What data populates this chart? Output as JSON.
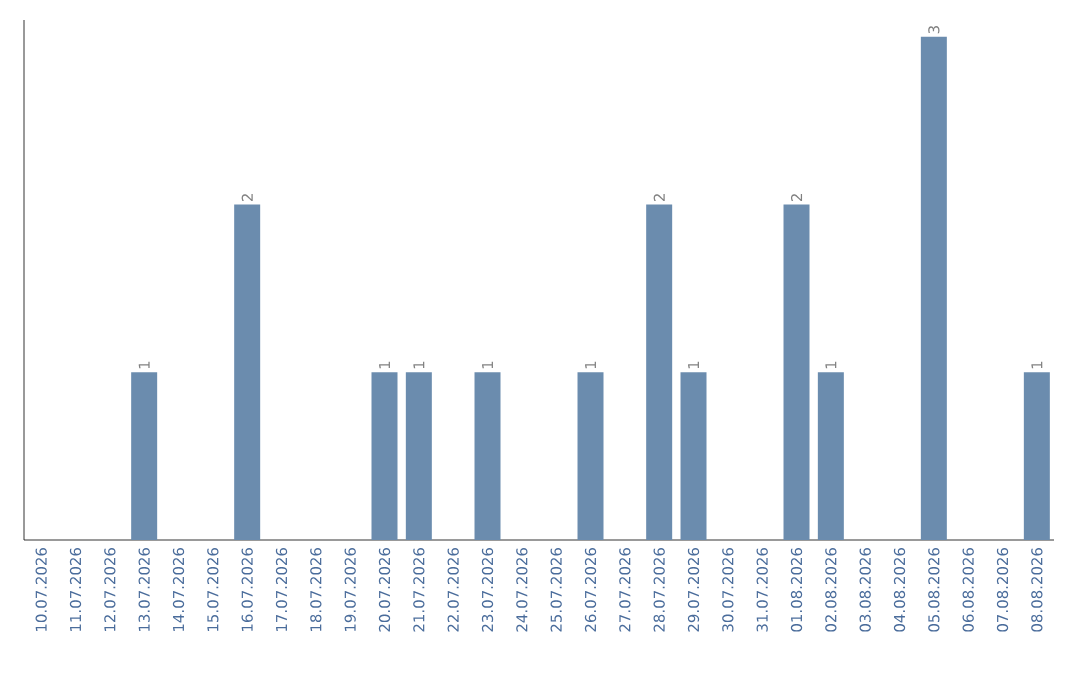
{
  "chart_data": {
    "type": "bar",
    "categories": [
      "10.07.2026",
      "11.07.2026",
      "12.07.2026",
      "13.07.2026",
      "14.07.2026",
      "15.07.2026",
      "16.07.2026",
      "17.07.2026",
      "18.07.2026",
      "19.07.2026",
      "20.07.2026",
      "21.07.2026",
      "22.07.2026",
      "23.07.2026",
      "24.07.2026",
      "25.07.2026",
      "26.07.2026",
      "27.07.2026",
      "28.07.2026",
      "29.07.2026",
      "30.07.2026",
      "31.07.2026",
      "01.08.2026",
      "02.08.2026",
      "03.08.2026",
      "04.08.2026",
      "05.08.2026",
      "06.08.2026",
      "07.08.2026",
      "08.08.2026"
    ],
    "values": [
      0,
      0,
      0,
      1,
      0,
      0,
      2,
      0,
      0,
      0,
      1,
      1,
      0,
      1,
      0,
      0,
      1,
      0,
      2,
      1,
      0,
      0,
      2,
      1,
      0,
      0,
      3,
      0,
      0,
      1
    ],
    "value_labels": [
      null,
      null,
      null,
      "1",
      null,
      null,
      "2",
      null,
      null,
      null,
      "1",
      "1",
      null,
      "1",
      null,
      null,
      "1",
      null,
      "2",
      "1",
      null,
      null,
      "2",
      "1",
      null,
      null,
      "3",
      null,
      null,
      "1"
    ],
    "color": "#6b8cae",
    "ylim": [
      0,
      3.1
    ]
  }
}
